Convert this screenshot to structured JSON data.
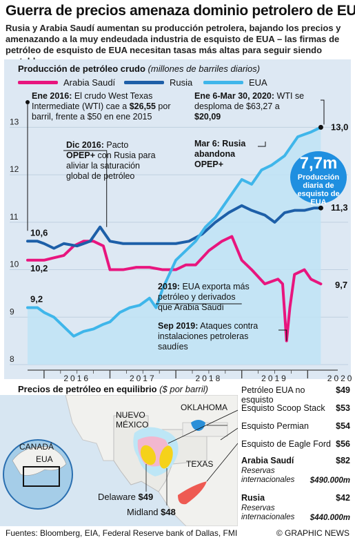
{
  "header": {
    "title": "Guerra de precios amenaza dominio petrolero de EUA",
    "subtitle": "Rusia y Arabia Saudí aumentan su producción petrolera, bajando los precios y amenazando a la muy endeudada industria de esquisto de EUA – las firmas de petróleo de esquisto de EUA necesitan tasas más altas para seguir siendo rentables"
  },
  "chart_data": {
    "type": "line",
    "title": "Producción de petróleo crudo",
    "unit": "(millones de barriles diarios)",
    "ylim": [
      8,
      13.5
    ],
    "yticks": [
      "8",
      "9",
      "10",
      "11",
      "12",
      "13"
    ],
    "xlim": [
      2015.75,
      2020.3
    ],
    "xticks": [
      "2016",
      "2017",
      "2018",
      "2019",
      "2020"
    ],
    "series": [
      {
        "name": "Arabia Saudí",
        "color": "#e8157e",
        "start_label": "10,2",
        "end_label": "9,7",
        "points": [
          [
            2015.75,
            10.2
          ],
          [
            2015.9,
            10.2
          ],
          [
            2016.0,
            10.2
          ],
          [
            2016.15,
            10.25
          ],
          [
            2016.3,
            10.3
          ],
          [
            2016.45,
            10.5
          ],
          [
            2016.6,
            10.6
          ],
          [
            2016.75,
            10.6
          ],
          [
            2016.9,
            10.5
          ],
          [
            2017.0,
            10.0
          ],
          [
            2017.2,
            10.0
          ],
          [
            2017.4,
            10.05
          ],
          [
            2017.6,
            10.05
          ],
          [
            2017.8,
            10.0
          ],
          [
            2018.0,
            10.0
          ],
          [
            2018.15,
            10.1
          ],
          [
            2018.3,
            10.1
          ],
          [
            2018.5,
            10.4
          ],
          [
            2018.7,
            10.6
          ],
          [
            2018.85,
            10.7
          ],
          [
            2019.0,
            10.2
          ],
          [
            2019.15,
            10.0
          ],
          [
            2019.35,
            9.7
          ],
          [
            2019.55,
            9.8
          ],
          [
            2019.62,
            9.7
          ],
          [
            2019.68,
            8.5
          ],
          [
            2019.73,
            9.2
          ],
          [
            2019.8,
            9.9
          ],
          [
            2019.95,
            10.0
          ],
          [
            2020.05,
            9.8
          ],
          [
            2020.2,
            9.7
          ]
        ]
      },
      {
        "name": "Rusia",
        "color": "#1d5fa8",
        "start_label": "10,6",
        "end_label": "11,3",
        "points": [
          [
            2015.75,
            10.6
          ],
          [
            2015.9,
            10.6
          ],
          [
            2016.0,
            10.55
          ],
          [
            2016.15,
            10.45
          ],
          [
            2016.3,
            10.55
          ],
          [
            2016.5,
            10.5
          ],
          [
            2016.7,
            10.6
          ],
          [
            2016.85,
            10.9
          ],
          [
            2017.0,
            10.6
          ],
          [
            2017.2,
            10.55
          ],
          [
            2017.4,
            10.55
          ],
          [
            2017.6,
            10.55
          ],
          [
            2017.8,
            10.55
          ],
          [
            2018.0,
            10.55
          ],
          [
            2018.2,
            10.6
          ],
          [
            2018.4,
            10.75
          ],
          [
            2018.6,
            11.0
          ],
          [
            2018.8,
            11.2
          ],
          [
            2019.0,
            11.35
          ],
          [
            2019.15,
            11.25
          ],
          [
            2019.35,
            11.15
          ],
          [
            2019.5,
            11.0
          ],
          [
            2019.65,
            11.2
          ],
          [
            2019.8,
            11.25
          ],
          [
            2019.95,
            11.25
          ],
          [
            2020.1,
            11.3
          ],
          [
            2020.2,
            11.3
          ]
        ]
      },
      {
        "name": "EUA",
        "color": "#3fb6ea",
        "start_label": "9,2",
        "end_label": "13,0",
        "points": [
          [
            2015.75,
            9.2
          ],
          [
            2015.9,
            9.2
          ],
          [
            2016.0,
            9.1
          ],
          [
            2016.15,
            9.0
          ],
          [
            2016.3,
            8.8
          ],
          [
            2016.45,
            8.6
          ],
          [
            2016.6,
            8.7
          ],
          [
            2016.75,
            8.75
          ],
          [
            2016.9,
            8.85
          ],
          [
            2017.0,
            8.9
          ],
          [
            2017.15,
            9.1
          ],
          [
            2017.3,
            9.2
          ],
          [
            2017.45,
            9.25
          ],
          [
            2017.6,
            9.4
          ],
          [
            2017.7,
            9.2
          ],
          [
            2017.8,
            9.6
          ],
          [
            2017.9,
            9.9
          ],
          [
            2018.0,
            10.2
          ],
          [
            2018.15,
            10.4
          ],
          [
            2018.3,
            10.6
          ],
          [
            2018.45,
            10.9
          ],
          [
            2018.6,
            11.1
          ],
          [
            2018.75,
            11.4
          ],
          [
            2018.9,
            11.7
          ],
          [
            2019.0,
            11.9
          ],
          [
            2019.15,
            11.8
          ],
          [
            2019.3,
            12.1
          ],
          [
            2019.45,
            12.2
          ],
          [
            2019.55,
            12.3
          ],
          [
            2019.65,
            12.4
          ],
          [
            2019.75,
            12.6
          ],
          [
            2019.85,
            12.8
          ],
          [
            2019.95,
            12.85
          ],
          [
            2020.05,
            12.9
          ],
          [
            2020.2,
            13.0
          ]
        ]
      }
    ],
    "annotations": [
      {
        "bold": "Ene 2016:",
        "text": " El crudo West Texas Intermediate (WTI) cae a ",
        "bold2": "$26,55",
        "text2": " por barril, frente a $50 en ene 2015"
      },
      {
        "bold": "Dic 2016:",
        "text": " Pacto ",
        "bold2": "OPEP+",
        "text2": " con Rusia para aliviar la saturación global de petróleo"
      },
      {
        "bold": "Ene 6-Mar 30, 2020:",
        "text": " WTI se desploma de $63,27 a ",
        "bold2": "$20,09",
        "text2": ""
      },
      {
        "bold": "Mar 6: Rusia abandona OPEP+",
        "text": "",
        "bold2": "",
        "text2": ""
      },
      {
        "bold": "2019:",
        "text": " EUA exporta más petróleo y derivados que Arabia Saudí",
        "bold2": "",
        "text2": ""
      },
      {
        "bold": "Sep 2019:",
        "text": " Ataques contra instalaciones petroleras saudíes",
        "bold2": "",
        "text2": ""
      }
    ],
    "callout": {
      "value": "7,7m",
      "label": "Producción diaria de esquisto de EUA"
    }
  },
  "breakeven": {
    "title": "Precios de petróleo en equilibrio",
    "unit": "($ por barril)",
    "rows": [
      {
        "label": "Petróleo EUA no esquisto",
        "value": "$49"
      },
      {
        "label": "Esquisto Scoop Stack",
        "value": "$53"
      },
      {
        "label": "Esquisto Permian",
        "value": "$54"
      },
      {
        "label": "Esquisto de Eagle Ford",
        "value": "$56"
      },
      {
        "label": "Arabia Saudí",
        "value": "$82",
        "note": "Reservas internacionales",
        "note_value": "$490.000m"
      },
      {
        "label": "Rusia",
        "value": "$42",
        "note": "Reservas internacionales",
        "note_value": "$440.000m"
      }
    ],
    "map_labels": {
      "nm": "NUEVO MÉXICO",
      "ok": "OKLAHOMA",
      "tx": "TEXAS",
      "canada": "CANADÁ",
      "eua": "EUA",
      "delaware": "Delaware",
      "delaware_value": "$49",
      "midland": "Midland",
      "midland_value": "$48"
    },
    "colors": {
      "scoop": "#2a8fd8",
      "permian_outer": "#bde6f6",
      "permian_mid": "#f2b7cf",
      "permian_core": "#f5d21a",
      "eagle_ford": "#ee5a52"
    }
  },
  "footer": {
    "sources": "Fuentes: Bloomberg, EIA, Federal Reserve bank of Dallas, FMI",
    "credit": "© GRAPHIC NEWS"
  }
}
